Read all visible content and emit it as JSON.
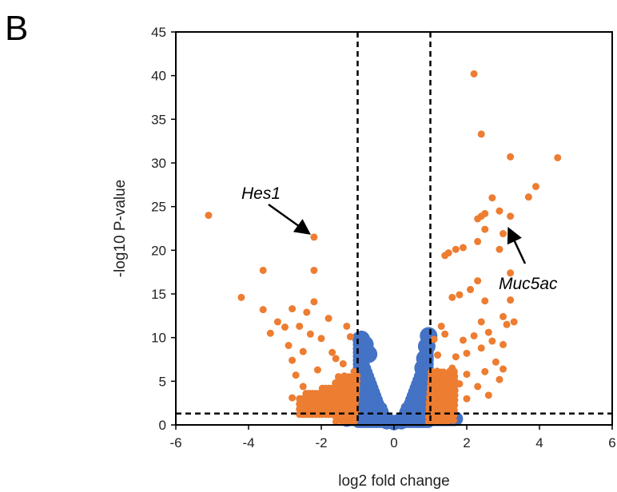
{
  "panel_label": "B",
  "chart_data": {
    "type": "scatter",
    "title": "",
    "xlabel": "log2 fold change",
    "ylabel": "-log10 P-value",
    "xlim": [
      -6,
      6
    ],
    "ylim": [
      0,
      45
    ],
    "xticks": [
      -6,
      -4,
      -2,
      0,
      2,
      4,
      6
    ],
    "yticks": [
      0,
      5,
      10,
      15,
      20,
      25,
      30,
      35,
      40,
      45
    ],
    "grid": false,
    "legend": "none",
    "thresholds": {
      "log2fc": [
        -1,
        1
      ],
      "neg_log10_p": 1.3
    },
    "colors": {
      "significant": "#ED7D31",
      "not_significant": "#4472C4",
      "threshold_line": "#000000"
    },
    "series": [
      {
        "points": [
          [
            -5.1,
            24.0
          ],
          [
            -4.2,
            14.6
          ],
          [
            -3.6,
            17.7
          ],
          [
            -3.6,
            13.2
          ],
          [
            -3.4,
            10.5
          ],
          [
            -3.2,
            11.8
          ],
          [
            -3.0,
            11.2
          ],
          [
            -2.9,
            9.1
          ],
          [
            -2.8,
            13.3
          ],
          [
            -2.8,
            7.4
          ],
          [
            -2.7,
            5.7
          ],
          [
            -2.6,
            11.3
          ],
          [
            -2.5,
            8.4
          ],
          [
            -2.4,
            12.9
          ],
          [
            -2.3,
            10.4
          ],
          [
            -2.2,
            14.1
          ],
          [
            -2.2,
            17.7
          ],
          [
            -2.2,
            21.5
          ],
          [
            -2.1,
            6.3
          ],
          [
            -2.0,
            9.9
          ],
          [
            -1.8,
            12.2
          ],
          [
            -1.7,
            8.3
          ],
          [
            -1.6,
            7.6
          ],
          [
            -1.4,
            7.0
          ],
          [
            -1.3,
            11.3
          ],
          [
            -1.2,
            10.1
          ],
          [
            -1.1,
            6.1
          ],
          [
            -2.8,
            3.1
          ],
          [
            -2.5,
            4.4
          ],
          [
            -2.2,
            3.3
          ],
          [
            -2.0,
            2.4
          ],
          [
            -1.8,
            2.0
          ],
          [
            -1.6,
            1.5
          ],
          [
            -1.5,
            5.0
          ],
          [
            -1.4,
            3.4
          ],
          [
            -1.3,
            2.0
          ],
          [
            -1.2,
            4.3
          ],
          [
            -1.1,
            3.0
          ],
          [
            -1.05,
            1.5
          ],
          [
            2.2,
            40.2
          ],
          [
            2.4,
            33.3
          ],
          [
            3.2,
            30.7
          ],
          [
            4.5,
            30.6
          ],
          [
            3.9,
            27.3
          ],
          [
            3.7,
            26.1
          ],
          [
            2.7,
            26.0
          ],
          [
            2.5,
            24.2
          ],
          [
            2.9,
            24.5
          ],
          [
            2.4,
            23.9
          ],
          [
            3.2,
            23.9
          ],
          [
            2.3,
            23.6
          ],
          [
            2.5,
            22.4
          ],
          [
            3.0,
            21.9
          ],
          [
            2.3,
            21.0
          ],
          [
            2.9,
            20.1
          ],
          [
            1.9,
            20.3
          ],
          [
            1.7,
            20.1
          ],
          [
            1.5,
            19.7
          ],
          [
            1.4,
            19.4
          ],
          [
            3.2,
            17.4
          ],
          [
            2.3,
            16.5
          ],
          [
            2.1,
            15.5
          ],
          [
            1.8,
            14.9
          ],
          [
            1.6,
            14.6
          ],
          [
            3.2,
            14.3
          ],
          [
            2.5,
            14.2
          ],
          [
            3.0,
            12.4
          ],
          [
            2.4,
            11.8
          ],
          [
            3.1,
            11.5
          ],
          [
            3.3,
            11.8
          ],
          [
            2.6,
            10.6
          ],
          [
            2.2,
            10.2
          ],
          [
            1.9,
            9.7
          ],
          [
            2.7,
            9.6
          ],
          [
            3.0,
            9.2
          ],
          [
            2.4,
            8.8
          ],
          [
            2.0,
            8.2
          ],
          [
            1.7,
            7.8
          ],
          [
            2.8,
            7.2
          ],
          [
            3.0,
            6.4
          ],
          [
            2.5,
            6.1
          ],
          [
            2.0,
            5.8
          ],
          [
            1.6,
            6.5
          ],
          [
            2.9,
            5.2
          ],
          [
            2.3,
            4.4
          ],
          [
            1.8,
            4.7
          ],
          [
            1.5,
            3.6
          ],
          [
            2.6,
            3.4
          ],
          [
            2.0,
            3.0
          ],
          [
            1.4,
            2.7
          ],
          [
            1.2,
            1.9
          ],
          [
            1.1,
            1.5
          ],
          [
            1.3,
            11.3
          ],
          [
            1.4,
            10.4
          ],
          [
            1.1,
            9.8
          ],
          [
            1.2,
            8.0
          ],
          [
            1.3,
            5.4
          ],
          [
            1.0,
            3.9
          ]
        ]
      },
      {
        "points": [
          [
            -0.9,
            9.8
          ],
          [
            -0.8,
            9.2
          ],
          [
            -0.7,
            8.1
          ],
          [
            -0.7,
            4.6
          ],
          [
            -0.8,
            6.0
          ],
          [
            -0.65,
            3.5
          ],
          [
            -0.55,
            2.4
          ],
          [
            -0.45,
            1.8
          ],
          [
            -0.35,
            1.2
          ],
          [
            -0.25,
            0.8
          ],
          [
            -0.15,
            0.5
          ],
          [
            0.0,
            0.2
          ],
          [
            0.15,
            0.5
          ],
          [
            0.25,
            0.8
          ],
          [
            0.35,
            1.2
          ],
          [
            0.45,
            1.8
          ],
          [
            0.55,
            2.4
          ],
          [
            0.65,
            3.5
          ],
          [
            0.75,
            5.0
          ],
          [
            0.8,
            6.5
          ],
          [
            0.85,
            7.6
          ],
          [
            0.9,
            9.0
          ],
          [
            0.95,
            10.2
          ],
          [
            -1.0,
            0.8
          ],
          [
            -0.95,
            1.1
          ],
          [
            -0.9,
            1.3
          ],
          [
            -0.8,
            1.0
          ],
          [
            -0.6,
            0.7
          ],
          [
            -0.4,
            0.5
          ],
          [
            -0.2,
            0.3
          ],
          [
            0.2,
            0.3
          ],
          [
            0.4,
            0.5
          ],
          [
            0.6,
            0.6
          ],
          [
            0.8,
            0.9
          ],
          [
            1.0,
            1.1
          ],
          [
            1.2,
            1.0
          ],
          [
            1.4,
            1.1
          ],
          [
            1.6,
            0.9
          ],
          [
            1.7,
            0.7
          ],
          [
            -1.3,
            0.6
          ]
        ]
      }
    ],
    "annotations": [
      {
        "text": "Hes1",
        "arrow_to": [
          -2.2,
          21.5
        ]
      },
      {
        "text": "Muc5ac",
        "arrow_to": [
          3.0,
          23.0
        ]
      }
    ]
  }
}
